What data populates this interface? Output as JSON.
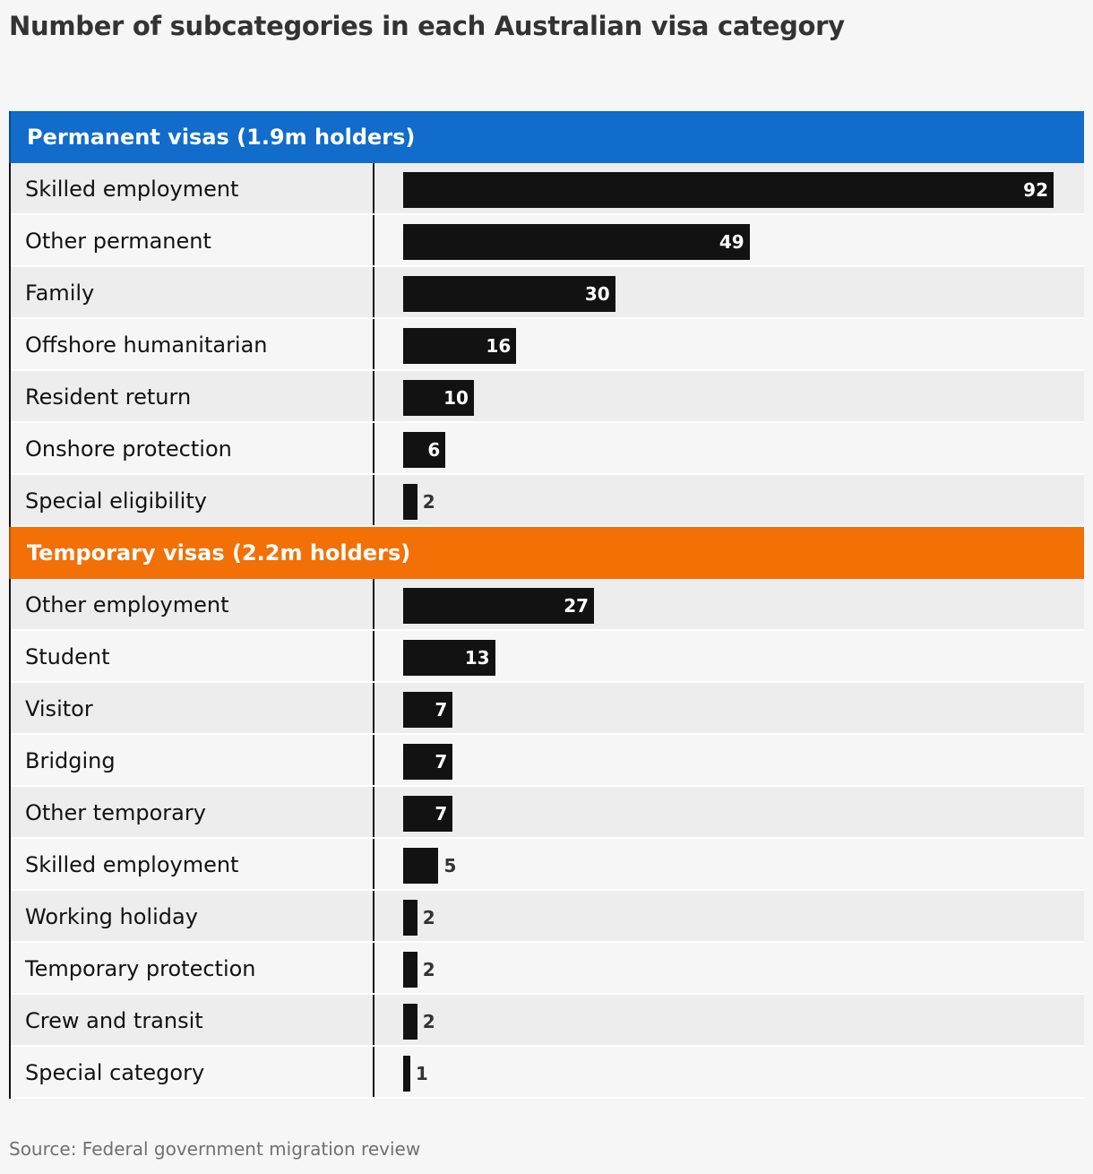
{
  "title": "Number of subcategories in each Australian visa category",
  "source": "Source: Federal government migration review",
  "colors": {
    "permanent": "#116ccb",
    "temporary": "#f27006",
    "bar": "#121212"
  },
  "chart_data": {
    "type": "bar",
    "orientation": "horizontal",
    "title": "Number of subcategories in each Australian visa category",
    "xlim": [
      0,
      92
    ],
    "grid": false,
    "groups": [
      {
        "name": "Permanent visas (1.9m holders)",
        "color": "#116ccb",
        "categories": [
          "Skilled employment",
          "Other permanent",
          "Family",
          "Offshore humanitarian",
          "Resident return",
          "Onshore protection",
          "Special eligibility"
        ],
        "values": [
          92,
          49,
          30,
          16,
          10,
          6,
          2
        ]
      },
      {
        "name": "Temporary visas (2.2m holders)",
        "color": "#f27006",
        "categories": [
          "Other employment",
          "Student",
          "Visitor",
          "Bridging",
          "Other temporary",
          "Skilled employment",
          "Working holiday",
          "Temporary protection",
          "Crew and transit",
          "Special category"
        ],
        "values": [
          27,
          13,
          7,
          7,
          7,
          5,
          2,
          2,
          2,
          1
        ]
      }
    ]
  }
}
